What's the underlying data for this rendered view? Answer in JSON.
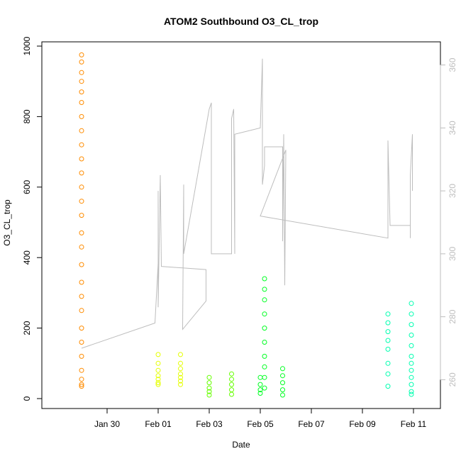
{
  "chart_data": {
    "type": "scatter",
    "title": "ATOM2 Southbound O3_CL_trop",
    "xlabel": "Date",
    "ylabel": "O3_CL_trop",
    "x_is_date": true,
    "xlim": [
      "2020-01-28T00:00",
      "2020-02-11T12:00"
    ],
    "ylim": [
      0,
      1000
    ],
    "y_ticks": [
      0,
      200,
      400,
      600,
      800,
      1000
    ],
    "x_ticks": [
      {
        "date": "2020-01-30",
        "label": "Jan 30"
      },
      {
        "date": "2020-02-01",
        "label": "Feb 01"
      },
      {
        "date": "2020-02-03",
        "label": "Feb 03"
      },
      {
        "date": "2020-02-05",
        "label": "Feb 05"
      },
      {
        "date": "2020-02-07",
        "label": "Feb 07"
      },
      {
        "date": "2020-02-09",
        "label": "Feb 09"
      },
      {
        "date": "2020-02-11",
        "label": "Feb 11"
      }
    ],
    "secondary_axis": {
      "ticks": [
        260,
        280,
        300,
        320,
        340,
        360
      ],
      "ylim": [
        254,
        366
      ],
      "color": "#bdbdbd"
    },
    "grid": false,
    "legend": "none",
    "series": [
      {
        "color": "#ff8c00",
        "points": [
          [
            "2020-01-29T00:00",
            975
          ],
          [
            "2020-01-29T00:00",
            955
          ],
          [
            "2020-01-29T00:00",
            925
          ],
          [
            "2020-01-29T00:00",
            900
          ],
          [
            "2020-01-29T00:00",
            870
          ],
          [
            "2020-01-29T00:00",
            840
          ],
          [
            "2020-01-29T00:00",
            800
          ],
          [
            "2020-01-29T00:00",
            760
          ],
          [
            "2020-01-29T00:00",
            720
          ],
          [
            "2020-01-29T00:00",
            680
          ],
          [
            "2020-01-29T00:00",
            640
          ],
          [
            "2020-01-29T00:00",
            600
          ],
          [
            "2020-01-29T00:00",
            560
          ],
          [
            "2020-01-29T00:00",
            520
          ],
          [
            "2020-01-29T00:00",
            470
          ],
          [
            "2020-01-29T00:00",
            430
          ],
          [
            "2020-01-29T00:00",
            380
          ],
          [
            "2020-01-29T00:00",
            330
          ],
          [
            "2020-01-29T00:00",
            290
          ],
          [
            "2020-01-29T00:00",
            250
          ],
          [
            "2020-01-29T00:00",
            200
          ],
          [
            "2020-01-29T00:00",
            160
          ],
          [
            "2020-01-29T00:00",
            120
          ],
          [
            "2020-01-29T00:00",
            80
          ],
          [
            "2020-01-29T00:00",
            55
          ],
          [
            "2020-01-29T00:00",
            40
          ],
          [
            "2020-01-29T00:00",
            35
          ]
        ]
      },
      {
        "color": "#e5ff00",
        "points": [
          [
            "2020-02-01T00:00",
            125
          ],
          [
            "2020-02-01T00:00",
            100
          ],
          [
            "2020-02-01T00:00",
            80
          ],
          [
            "2020-02-01T00:00",
            65
          ],
          [
            "2020-02-01T00:00",
            55
          ],
          [
            "2020-02-01T00:00",
            45
          ],
          [
            "2020-02-01T00:00",
            40
          ],
          [
            "2020-02-01T21:00",
            125
          ],
          [
            "2020-02-01T21:00",
            100
          ],
          [
            "2020-02-01T21:00",
            85
          ],
          [
            "2020-02-01T21:00",
            70
          ],
          [
            "2020-02-01T21:00",
            60
          ],
          [
            "2020-02-01T21:00",
            50
          ],
          [
            "2020-02-01T21:00",
            40
          ]
        ]
      },
      {
        "color": "#66ff00",
        "points": [
          [
            "2020-02-03T00:00",
            60
          ],
          [
            "2020-02-03T00:00",
            45
          ],
          [
            "2020-02-03T00:00",
            30
          ],
          [
            "2020-02-03T00:00",
            20
          ],
          [
            "2020-02-03T00:00",
            10
          ],
          [
            "2020-02-03T21:00",
            70
          ],
          [
            "2020-02-03T21:00",
            55
          ],
          [
            "2020-02-03T21:00",
            40
          ],
          [
            "2020-02-03T21:00",
            25
          ],
          [
            "2020-02-03T21:00",
            12
          ]
        ]
      },
      {
        "color": "#00ff22",
        "points": [
          [
            "2020-02-05T00:00",
            60
          ],
          [
            "2020-02-05T00:00",
            40
          ],
          [
            "2020-02-05T00:00",
            25
          ],
          [
            "2020-02-05T00:00",
            15
          ],
          [
            "2020-02-05T04:00",
            340
          ],
          [
            "2020-02-05T04:00",
            310
          ],
          [
            "2020-02-05T04:00",
            280
          ],
          [
            "2020-02-05T04:00",
            240
          ],
          [
            "2020-02-05T04:00",
            200
          ],
          [
            "2020-02-05T04:00",
            160
          ],
          [
            "2020-02-05T04:00",
            120
          ],
          [
            "2020-02-05T04:00",
            90
          ],
          [
            "2020-02-05T04:00",
            60
          ],
          [
            "2020-02-05T04:00",
            30
          ],
          [
            "2020-02-05T21:00",
            85
          ],
          [
            "2020-02-05T21:00",
            65
          ],
          [
            "2020-02-05T21:00",
            45
          ],
          [
            "2020-02-05T21:00",
            25
          ],
          [
            "2020-02-05T21:00",
            10
          ]
        ]
      },
      {
        "color": "#00ffb0",
        "points": [
          [
            "2020-02-10T00:00",
            240
          ],
          [
            "2020-02-10T00:00",
            215
          ],
          [
            "2020-02-10T00:00",
            190
          ],
          [
            "2020-02-10T00:00",
            165
          ],
          [
            "2020-02-10T00:00",
            140
          ],
          [
            "2020-02-10T00:00",
            100
          ],
          [
            "2020-02-10T00:00",
            70
          ],
          [
            "2020-02-10T00:00",
            35
          ],
          [
            "2020-02-10T22:00",
            270
          ],
          [
            "2020-02-10T22:00",
            240
          ],
          [
            "2020-02-10T22:00",
            210
          ],
          [
            "2020-02-10T22:00",
            180
          ],
          [
            "2020-02-10T22:00",
            150
          ],
          [
            "2020-02-10T22:00",
            120
          ],
          [
            "2020-02-10T22:00",
            100
          ],
          [
            "2020-02-10T22:00",
            80
          ],
          [
            "2020-02-10T22:00",
            60
          ],
          [
            "2020-02-10T22:00",
            40
          ],
          [
            "2020-02-10T22:00",
            20
          ],
          [
            "2020-02-10T22:00",
            12
          ]
        ]
      }
    ],
    "secondary_series": {
      "color": "#bdbdbd",
      "points": [
        [
          "2020-01-29T00:00",
          270
        ],
        [
          "2020-01-31T21:00",
          278
        ],
        [
          "2020-02-01T00:00",
          297
        ],
        [
          "2020-02-01T00:00",
          320
        ],
        [
          "2020-02-01T00:00",
          283
        ],
        [
          "2020-02-01T02:00",
          325
        ],
        [
          "2020-02-01T03:00",
          296
        ],
        [
          "2020-02-02T21:00",
          295
        ],
        [
          "2020-02-02T21:00",
          285
        ],
        [
          "2020-02-01T23:00",
          276
        ],
        [
          "2020-02-02T00:00",
          322
        ],
        [
          "2020-02-02T00:00",
          314
        ],
        [
          "2020-02-02T00:00",
          300
        ],
        [
          "2020-02-03T00:00",
          346
        ],
        [
          "2020-02-03T02:00",
          348
        ],
        [
          "2020-02-03T02:00",
          300
        ],
        [
          "2020-02-03T21:00",
          300
        ],
        [
          "2020-02-03T21:00",
          343
        ],
        [
          "2020-02-03T23:00",
          346
        ],
        [
          "2020-02-04T00:00",
          300
        ],
        [
          "2020-02-04T00:00",
          338
        ],
        [
          "2020-02-05T00:00",
          340
        ],
        [
          "2020-02-05T02:00",
          362
        ],
        [
          "2020-02-05T02:00",
          322
        ],
        [
          "2020-02-05T04:00",
          328
        ],
        [
          "2020-02-05T04:00",
          334
        ],
        [
          "2020-02-05T21:00",
          334
        ],
        [
          "2020-02-05T21:00",
          304
        ],
        [
          "2020-02-05T22:00",
          338
        ],
        [
          "2020-02-05T23:00",
          290
        ],
        [
          "2020-02-06T00:00",
          333
        ],
        [
          "2020-02-05T00:00",
          312
        ],
        [
          "2020-02-10T00:00",
          305
        ],
        [
          "2020-02-10T00:00",
          336
        ],
        [
          "2020-02-10T02:00",
          309
        ],
        [
          "2020-02-10T21:00",
          309
        ],
        [
          "2020-02-10T21:00",
          305
        ],
        [
          "2020-02-10T21:00",
          325
        ],
        [
          "2020-02-10T23:00",
          338
        ],
        [
          "2020-02-10T23:00",
          320
        ]
      ]
    }
  }
}
